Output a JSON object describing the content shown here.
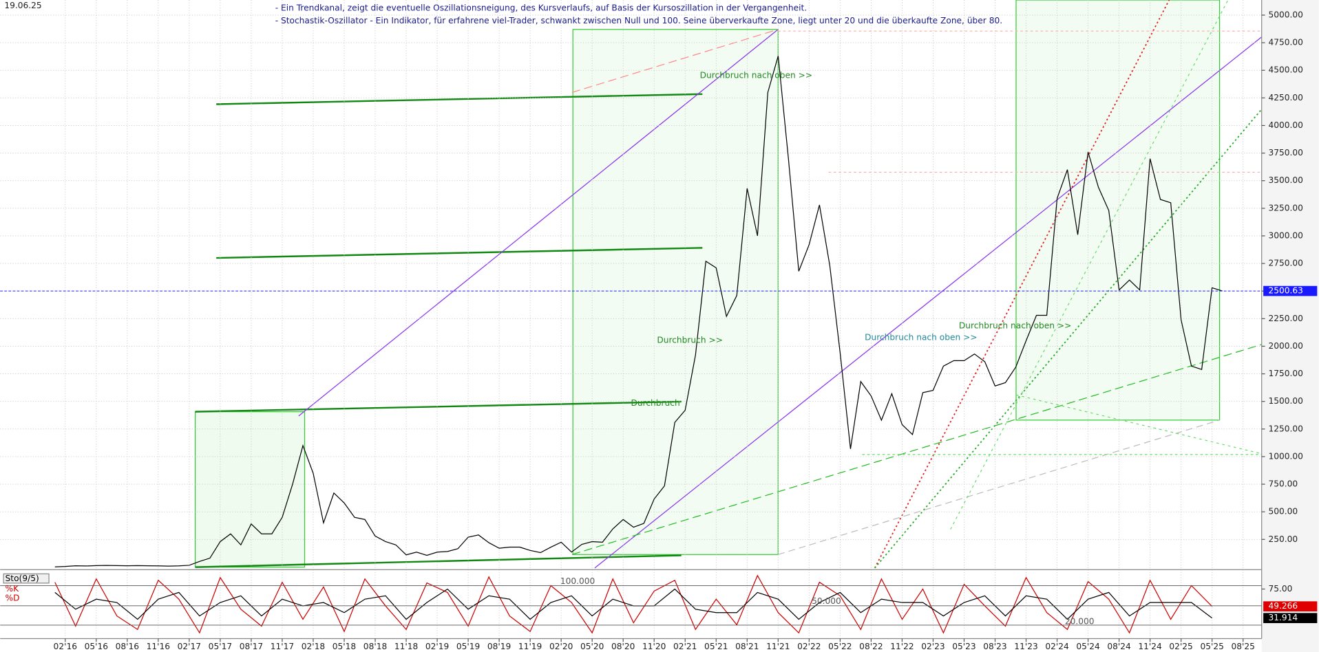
{
  "date": "19.06.25",
  "notes": [
    "- Ein Trendkanal, zeigt die eventuelle Oszillationsneigung, des Kursverlaufs, auf Basis der Kursoszillation in der Vergangenheit.",
    "- Stochastik-Oszillator - Ein Indikator, für erfahrene viel-Trader, schwankt zwischen Null und 100. Seine überverkaufte Zone, liegt unter 20 und die überkaufte Zone, über 80."
  ],
  "chart_data": [
    {
      "type": "line",
      "annotations": [
        "Durchbruch nach oben >>",
        "Durchbruch >>",
        "Durchbruch",
        "Durchbruch nach oben >>",
        "Durchbruch nach oben >>"
      ],
      "x": [
        0,
        1,
        2,
        3,
        4,
        5,
        6,
        7,
        8,
        9,
        10,
        11,
        12,
        13,
        14,
        15,
        16,
        17,
        18,
        19,
        20,
        21,
        22,
        23,
        24,
        25,
        26,
        27,
        28,
        29,
        30,
        31,
        32,
        33,
        34,
        35,
        36,
        37,
        38,
        39,
        40,
        41,
        42,
        43,
        44,
        45,
        46,
        47,
        48,
        49,
        50,
        51,
        52,
        53,
        54,
        55,
        56,
        57,
        58,
        59,
        60,
        61,
        62,
        63,
        64,
        65,
        66,
        67,
        68,
        69,
        70,
        71,
        72,
        73,
        74,
        75,
        76,
        77,
        78,
        79,
        80,
        81,
        82,
        83,
        84,
        85,
        86,
        87,
        88,
        89,
        90,
        91,
        92,
        93,
        94,
        95,
        96,
        97,
        98,
        99,
        100,
        101,
        102,
        103,
        104,
        105,
        106,
        107,
        108,
        109,
        110,
        111,
        112,
        113
      ],
      "series": [
        {
          "color": "#000000",
          "values": [
            1,
            5,
            11,
            9,
            12,
            14,
            12,
            11,
            12,
            11,
            10,
            8,
            10,
            15,
            50,
            80,
            230,
            300,
            200,
            390,
            300,
            300,
            450,
            750,
            1100,
            850,
            400,
            670,
            580,
            450,
            430,
            280,
            230,
            200,
            110,
            135,
            105,
            135,
            140,
            165,
            270,
            290,
            220,
            170,
            180,
            180,
            150,
            130,
            180,
            225,
            135,
            205,
            230,
            225,
            345,
            430,
            360,
            395,
            615,
            735,
            1310,
            1420,
            1920,
            2770,
            2710,
            2270,
            2460,
            3430,
            3000,
            4300,
            4630,
            3700,
            2680,
            2920,
            3280,
            2730,
            1940,
            1070,
            1680,
            1550,
            1330,
            1570,
            1290,
            1200,
            1580,
            1600,
            1820,
            1870,
            1870,
            1930,
            1860,
            1640,
            1670,
            1810,
            2050,
            2280,
            2280,
            3340,
            3600,
            3010,
            3760,
            3440,
            3230,
            2510,
            2600,
            2510,
            3700,
            3330,
            3300,
            2240,
            1820,
            1790,
            2530,
            2500.63
          ]
        }
      ],
      "xlim": [
        -5.3,
        116.8
      ],
      "ylim": [
        -9,
        5137
      ],
      "xticks": [
        {
          "value": 1,
          "label": "02'16"
        },
        {
          "value": 4,
          "label": "05'16"
        },
        {
          "value": 7,
          "label": "08'16"
        },
        {
          "value": 10,
          "label": "11'16"
        },
        {
          "value": 13,
          "label": "02'17"
        },
        {
          "value": 16,
          "label": "05'17"
        },
        {
          "value": 19,
          "label": "08'17"
        },
        {
          "value": 22,
          "label": "11'17"
        },
        {
          "value": 25,
          "label": "02'18"
        },
        {
          "value": 28,
          "label": "05'18"
        },
        {
          "value": 31,
          "label": "08'18"
        },
        {
          "value": 34,
          "label": "11'18"
        },
        {
          "value": 37,
          "label": "02'19"
        },
        {
          "value": 40,
          "label": "05'19"
        },
        {
          "value": 43,
          "label": "08'19"
        },
        {
          "value": 46,
          "label": "11'19"
        },
        {
          "value": 49,
          "label": "02'20"
        },
        {
          "value": 52,
          "label": "05'20"
        },
        {
          "value": 55,
          "label": "08'20"
        },
        {
          "value": 58,
          "label": "11'20"
        },
        {
          "value": 61,
          "label": "02'21"
        },
        {
          "value": 64,
          "label": "05'21"
        },
        {
          "value": 67,
          "label": "08'21"
        },
        {
          "value": 70,
          "label": "11'21"
        },
        {
          "value": 73,
          "label": "02'22"
        },
        {
          "value": 76,
          "label": "05'22"
        },
        {
          "value": 79,
          "label": "08'22"
        },
        {
          "value": 82,
          "label": "11'22"
        },
        {
          "value": 85,
          "label": "02'23"
        },
        {
          "value": 88,
          "label": "05'23"
        },
        {
          "value": 91,
          "label": "08'23"
        },
        {
          "value": 94,
          "label": "11'23"
        },
        {
          "value": 97,
          "label": "02'24"
        },
        {
          "value": 100,
          "label": "05'24"
        },
        {
          "value": 103,
          "label": "08'24"
        },
        {
          "value": 106,
          "label": "11'24"
        },
        {
          "value": 109,
          "label": "02'25"
        },
        {
          "value": 112,
          "label": "05'25"
        },
        {
          "value": 115,
          "label": "08'25"
        }
      ],
      "yticks": [
        {
          "value": 250,
          "label": "250.00"
        },
        {
          "value": 500,
          "label": "500.00"
        },
        {
          "value": 750,
          "label": "750.00"
        },
        {
          "value": 1000,
          "label": "1000.00"
        },
        {
          "value": 1250,
          "label": "1250.00"
        },
        {
          "value": 1500,
          "label": "1500.00"
        },
        {
          "value": 1750,
          "label": "1750.00"
        },
        {
          "value": 2000,
          "label": "2000.00"
        },
        {
          "value": 2250,
          "label": "2250.00"
        },
        {
          "value": 2500,
          "label": "2500.00"
        },
        {
          "value": 2750,
          "label": "2750.00"
        },
        {
          "value": 3000,
          "label": "3000.00"
        },
        {
          "value": 3250,
          "label": "3250.00"
        },
        {
          "value": 3500,
          "label": "3500.00"
        },
        {
          "value": 3750,
          "label": "3750.00"
        },
        {
          "value": 4000,
          "label": "4000.00"
        },
        {
          "value": 4250,
          "label": "4250.00"
        },
        {
          "value": 4500,
          "label": "4500.00"
        },
        {
          "value": 4750,
          "label": "4750.00"
        },
        {
          "value": 5000,
          "label": "5000.00"
        }
      ],
      "grid": true
    },
    {
      "type": "line",
      "title": "Sto(9/5)",
      "annotations": [
        "100.000",
        "50.000",
        "20.000"
      ],
      "x": [
        0,
        2,
        4,
        6,
        8,
        10,
        12,
        14,
        16,
        18,
        20,
        22,
        24,
        26,
        28,
        30,
        32,
        34,
        36,
        38,
        40,
        42,
        44,
        46,
        48,
        50,
        52,
        54,
        56,
        58,
        60,
        62,
        64,
        66,
        68,
        70,
        72,
        74,
        76,
        78,
        80,
        82,
        84,
        86,
        88,
        90,
        92,
        94,
        96,
        98,
        100,
        102,
        104,
        106,
        108,
        110,
        112
      ],
      "series": [
        {
          "name": "%K",
          "color": "#cc0000",
          "values": [
            85,
            20,
            90,
            35,
            15,
            88,
            60,
            10,
            92,
            45,
            20,
            85,
            30,
            78,
            12,
            90,
            50,
            15,
            84,
            70,
            20,
            93,
            35,
            12,
            80,
            55,
            10,
            90,
            25,
            72,
            88,
            15,
            60,
            22,
            95,
            40,
            10,
            85,
            65,
            15,
            90,
            30,
            75,
            10,
            82,
            50,
            20,
            92,
            40,
            15,
            86,
            60,
            10,
            88,
            30,
            80,
            49.266
          ]
        },
        {
          "name": "%D",
          "color": "#000000",
          "values": [
            70,
            45,
            60,
            55,
            30,
            60,
            70,
            35,
            55,
            65,
            35,
            60,
            50,
            55,
            40,
            60,
            65,
            30,
            55,
            75,
            45,
            65,
            60,
            30,
            55,
            65,
            35,
            60,
            50,
            50,
            75,
            45,
            40,
            40,
            70,
            60,
            30,
            55,
            70,
            40,
            60,
            55,
            55,
            35,
            55,
            65,
            35,
            65,
            60,
            30,
            60,
            70,
            35,
            55,
            55,
            55,
            31.914
          ]
        }
      ],
      "xlim": [
        -5.3,
        116.8
      ],
      "ylim": [
        4,
        100
      ],
      "yticks": [
        {
          "value": 75,
          "label": "75.00"
        }
      ]
    }
  ]
}
